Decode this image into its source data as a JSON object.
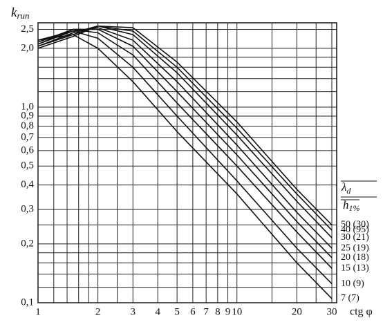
{
  "chart_data": {
    "type": "line",
    "log_x": true,
    "log_y": true,
    "grid": true,
    "color": "#111",
    "ylabel": {
      "main": "k",
      "sub": "run"
    },
    "xlabel": "ctg φ",
    "legend_title": {
      "numerator": "λ",
      "numerator_sub": "d",
      "denominator": "h",
      "denominator_sub": "1%"
    },
    "xlim": [
      1,
      30
    ],
    "ylim": [
      0.1,
      2.7
    ],
    "xticks": [
      1,
      2,
      3,
      4,
      5,
      6,
      7,
      8,
      9,
      10,
      20,
      30
    ],
    "x_minor_ticks": [
      1.2,
      1.4,
      1.6,
      1.8,
      2.5,
      15,
      25
    ],
    "yticks": [
      {
        "value": 0.1,
        "label": "0,1"
      },
      {
        "value": 0.2,
        "label": "0,2"
      },
      {
        "value": 0.3,
        "label": "0,3"
      },
      {
        "value": 0.4,
        "label": "0,4"
      },
      {
        "value": 0.5,
        "label": "0,5"
      },
      {
        "value": 0.6,
        "label": "0,6"
      },
      {
        "value": 0.7,
        "label": "0,7"
      },
      {
        "value": 0.8,
        "label": "0,8"
      },
      {
        "value": 0.9,
        "label": "0,9"
      },
      {
        "value": 1.0,
        "label": "1,0"
      },
      {
        "value": 2.0,
        "label": "2,0"
      },
      {
        "value": 2.5,
        "label": "2,5"
      }
    ],
    "y_minor_ticks": [
      0.12,
      0.14,
      0.16,
      0.18,
      0.25,
      1.2,
      1.4,
      1.6,
      1.8
    ],
    "x": [
      1,
      1.5,
      2,
      3,
      5,
      10,
      20,
      30
    ],
    "series": [
      {
        "name": "50 (30)",
        "values": [
          2.0,
          2.3,
          2.6,
          2.55,
          1.7,
          0.84,
          0.38,
          0.25
        ]
      },
      {
        "name": "40 (95)",
        "values": [
          2.05,
          2.35,
          2.6,
          2.45,
          1.6,
          0.78,
          0.36,
          0.235
        ]
      },
      {
        "name": "30 (21)",
        "values": [
          2.05,
          2.4,
          2.6,
          2.35,
          1.5,
          0.72,
          0.33,
          0.215
        ]
      },
      {
        "name": "25 (19)",
        "values": [
          2.1,
          2.45,
          2.55,
          2.2,
          1.35,
          0.64,
          0.29,
          0.19
        ]
      },
      {
        "name": "20 (18)",
        "values": [
          2.1,
          2.5,
          2.5,
          2.05,
          1.2,
          0.57,
          0.26,
          0.17
        ]
      },
      {
        "name": "15 (13)",
        "values": [
          2.15,
          2.5,
          2.4,
          1.85,
          1.05,
          0.5,
          0.23,
          0.15
        ]
      },
      {
        "name": "10 (9)",
        "values": [
          2.2,
          2.45,
          2.25,
          1.6,
          0.9,
          0.42,
          0.19,
          0.125
        ]
      },
      {
        "name": "7 (7)",
        "values": [
          2.2,
          2.35,
          2.0,
          1.35,
          0.75,
          0.36,
          0.16,
          0.105
        ]
      }
    ]
  }
}
